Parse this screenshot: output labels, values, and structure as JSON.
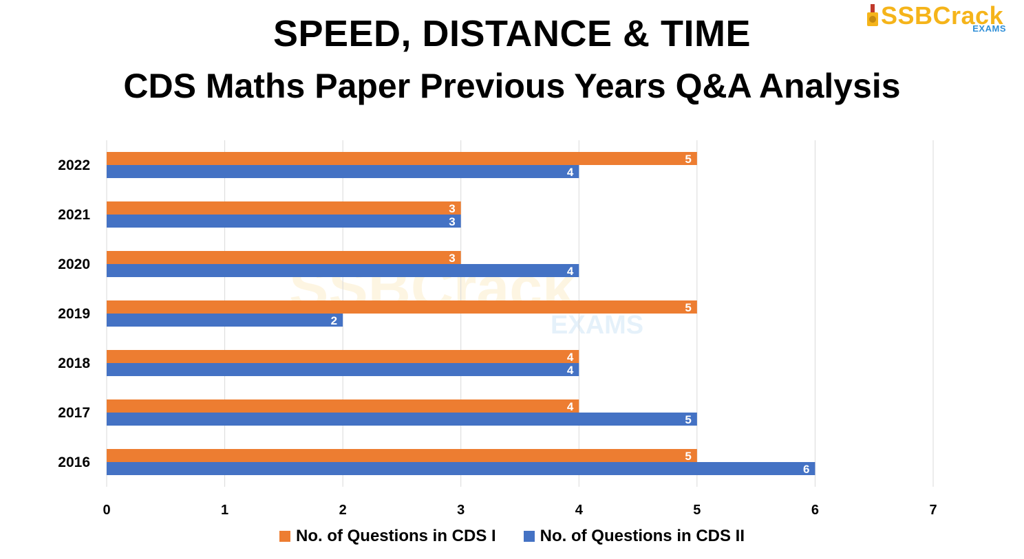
{
  "title": "SPEED, DISTANCE & TIME",
  "subtitle": "CDS Maths Paper Previous Years Q&A Analysis",
  "logo": {
    "brand": "SSBCrack",
    "sub": "EXAMS"
  },
  "colors": {
    "cds1": "#ED7D31",
    "cds2": "#4472C4",
    "grid": "#d9d9d9"
  },
  "chart_data": {
    "type": "bar",
    "orientation": "horizontal",
    "categories": [
      "2022",
      "2021",
      "2020",
      "2019",
      "2018",
      "2017",
      "2016"
    ],
    "series": [
      {
        "name": "No. of Questions in CDS I",
        "values": [
          5,
          3,
          3,
          5,
          4,
          4,
          5
        ]
      },
      {
        "name": "No. of Questions in CDS II",
        "values": [
          4,
          3,
          4,
          2,
          4,
          5,
          6
        ]
      }
    ],
    "xlim": [
      0,
      7
    ],
    "xticks": [
      0,
      1,
      2,
      3,
      4,
      5,
      6,
      7
    ],
    "grid": true,
    "data_labels": true,
    "legend_position": "bottom"
  }
}
